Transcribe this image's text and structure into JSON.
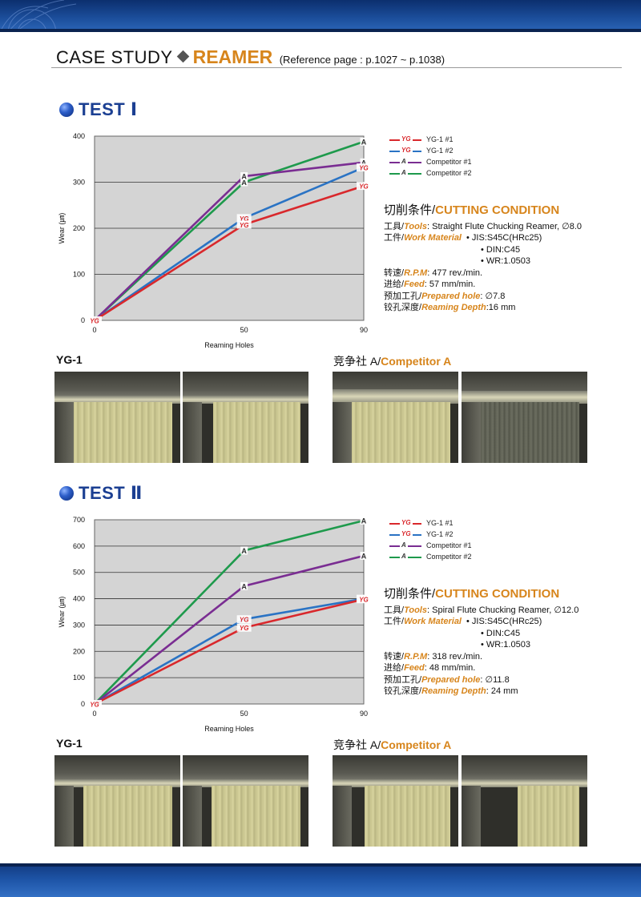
{
  "header": {
    "case_study": "CASE STUDY",
    "reamer": "REAMER",
    "reference": "(Reference page : p.1027 ~ p.1038)"
  },
  "colors": {
    "yg1_1": "#d9282c",
    "yg1_2": "#2a73c4",
    "competitor_1": "#7a2d92",
    "competitor_2": "#1e9a4c",
    "accent": "#d7851c",
    "title_blue": "#1b3f92",
    "plot_bg": "#d4d4d4"
  },
  "legend": [
    {
      "badge": "YG",
      "label": "YG-1 #1"
    },
    {
      "badge": "YG",
      "label": "YG-1 #2"
    },
    {
      "badge": "A",
      "label": "Competitor #1"
    },
    {
      "badge": "A",
      "label": "Competitor #2"
    }
  ],
  "test1": {
    "title": "TEST Ⅰ",
    "chart_data": {
      "type": "line",
      "x": [
        0,
        50,
        90
      ],
      "xlabel": "Reaming Holes",
      "ylabel": "Wear (㎛)",
      "ylim": [
        0,
        400
      ],
      "yticks": [
        0,
        100,
        200,
        300,
        400
      ],
      "xticks": [
        0,
        50,
        90
      ],
      "grid": true,
      "series": [
        {
          "name": "YG-1 #1",
          "values": [
            0,
            208,
            292
          ],
          "marker": "YG"
        },
        {
          "name": "YG-1 #2",
          "values": [
            0,
            222,
            332
          ],
          "marker": "YG"
        },
        {
          "name": "Competitor #1",
          "values": [
            0,
            313,
            343
          ],
          "marker": "A"
        },
        {
          "name": "Competitor #2",
          "values": [
            0,
            300,
            388
          ],
          "marker": "A"
        }
      ]
    },
    "condition": {
      "title_zh": "切削条件/",
      "title_en": "CUTTING CONDITION",
      "tools_zh": "工具/",
      "tools_en": "Tools",
      "tools_value": ": Straight Flute Chucking Reamer, ∅8.0",
      "work_zh": "工件/",
      "work_en": "Work Material",
      "work_values": [
        "• JIS:S45C(HRc25)",
        "• DIN:C45",
        "• WR:1.0503"
      ],
      "rpm_zh": "转速/",
      "rpm_en": "R.P.M",
      "rpm_value": ": 477 rev./min.",
      "feed_zh": "进给/",
      "feed_en": "Feed",
      "feed_value": ": 57 mm/min.",
      "hole_zh": "预加工孔/",
      "hole_en": "Prepared hole",
      "hole_value": ": ∅7.8",
      "depth_zh": "铰孔深度/",
      "depth_en": "Reaming Depth",
      "depth_value": ":16 mm"
    },
    "yg_label": "YG-1",
    "comp_zh": "竞争社 A/",
    "comp_en": "Competitor A"
  },
  "test2": {
    "title": "TEST Ⅱ",
    "chart_data": {
      "type": "line",
      "x": [
        0,
        50,
        90
      ],
      "xlabel": "Reaming Holes",
      "ylabel": "Wear (㎛)",
      "ylim": [
        0,
        700
      ],
      "yticks": [
        0,
        100,
        200,
        300,
        400,
        500,
        600,
        700
      ],
      "xticks": [
        0,
        50,
        90
      ],
      "grid": true,
      "series": [
        {
          "name": "YG-1 #1",
          "values": [
            0,
            290,
            398
          ],
          "marker": "YG"
        },
        {
          "name": "YG-1 #2",
          "values": [
            0,
            322,
            400
          ],
          "marker": "YG"
        },
        {
          "name": "Competitor #1",
          "values": [
            0,
            448,
            563
          ],
          "marker": "A"
        },
        {
          "name": "Competitor #2",
          "values": [
            0,
            583,
            697
          ],
          "marker": "A"
        }
      ]
    },
    "condition": {
      "title_zh": "切削条件/",
      "title_en": "CUTTING CONDITION",
      "tools_zh": "工具/",
      "tools_en": "Tools",
      "tools_value": ": Spiral Flute Chucking Reamer, ∅12.0",
      "work_zh": "工件/",
      "work_en": "Work Material",
      "work_values": [
        "• JIS:S45C(HRc25)",
        "• DIN:C45",
        "• WR:1.0503"
      ],
      "rpm_zh": "转速/",
      "rpm_en": "R.P.M",
      "rpm_value": ": 318 rev./min.",
      "feed_zh": "进给/",
      "feed_en": "Feed",
      "feed_value": ": 48 mm/min.",
      "hole_zh": "预加工孔/",
      "hole_en": "Prepared hole",
      "hole_value": ": ∅11.8",
      "depth_zh": "铰孔深度/",
      "depth_en": "Reaming Depth",
      "depth_value": ": 24 mm"
    },
    "yg_label": "YG-1",
    "comp_zh": "竞争社 A/",
    "comp_en": "Competitor A"
  }
}
